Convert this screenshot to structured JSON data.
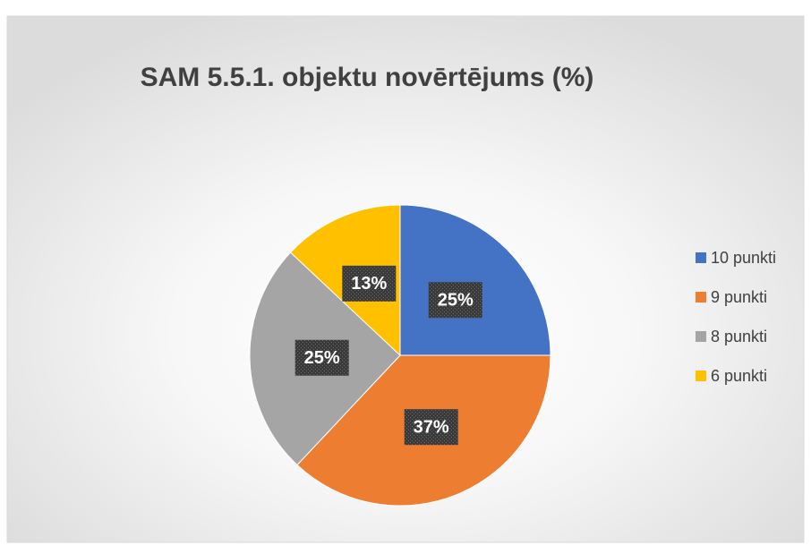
{
  "chart_data": {
    "type": "pie",
    "title": "SAM 5.5.1. objektu novērtējums (%)",
    "categories": [
      "10 punkti",
      "9 punkti",
      "8 punkti",
      "6 punkti"
    ],
    "values": [
      25,
      37,
      25,
      13
    ],
    "value_labels": [
      "25%",
      "37%",
      "25%",
      "13%"
    ],
    "colors": [
      "#4472c4",
      "#ed7d31",
      "#a5a5a5",
      "#ffc000"
    ],
    "legend": "right"
  }
}
